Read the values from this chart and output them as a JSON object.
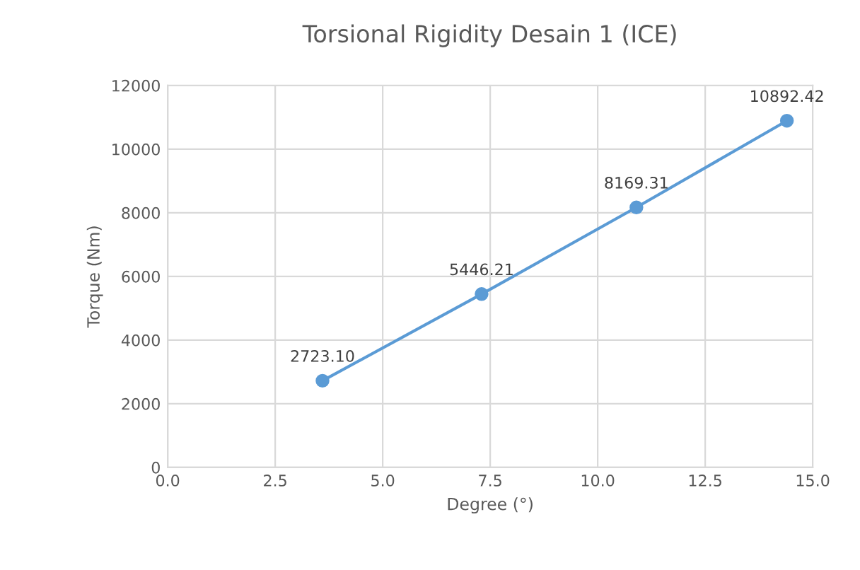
{
  "chart_data": {
    "type": "line",
    "title": "Torsional Rigidity Desain 1 (ICE)",
    "xlabel": "Degree (°)",
    "ylabel": "Torque (Nm)",
    "x": [
      3.6,
      7.3,
      10.9,
      14.4
    ],
    "series": [
      {
        "color": "#5b9bd5",
        "values": [
          2723.1,
          5446.21,
          8169.31,
          10892.42
        ],
        "value_labels": [
          "2723.10",
          "5446.21",
          "8169.31",
          "10892.42"
        ]
      }
    ],
    "xlim": [
      0,
      15
    ],
    "xticks": [
      {
        "value": 0,
        "label": "0.0"
      },
      {
        "value": 2.5,
        "label": "2.5"
      },
      {
        "value": 5,
        "label": "5.0"
      },
      {
        "value": 7.5,
        "label": "7.5"
      },
      {
        "value": 10,
        "label": "10.0"
      },
      {
        "value": 12.5,
        "label": "12.5"
      },
      {
        "value": 15,
        "label": "15.0"
      }
    ],
    "ylim": [
      0,
      12000
    ],
    "yticks": [
      0,
      2000,
      4000,
      6000,
      8000,
      10000,
      12000
    ],
    "grid": true,
    "marker": "circle",
    "line_style": "solid"
  }
}
